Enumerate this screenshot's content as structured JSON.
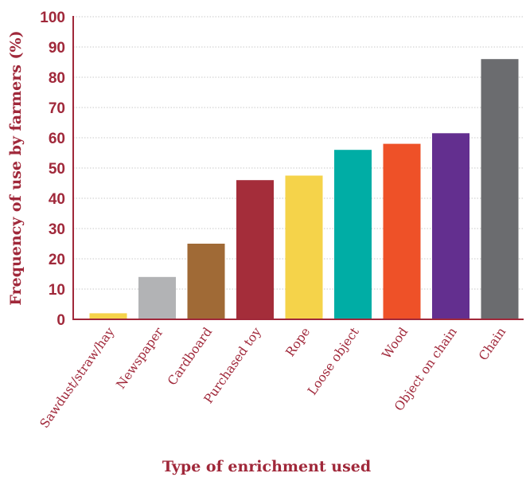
{
  "chart_data": {
    "type": "bar",
    "title": "",
    "xlabel": "Type of enrichment used",
    "ylabel": "Frequency of use by farmers (%)",
    "ylim": [
      0,
      100
    ],
    "yticks": [
      0,
      10,
      20,
      30,
      40,
      50,
      60,
      70,
      80,
      90,
      100
    ],
    "grid": true,
    "categories": [
      "Sawdust/straw/hay",
      "Newspaper",
      "Cardboard",
      "Purchased toy",
      "Rope",
      "Loose object",
      "Wood",
      "Object on chain",
      "Chain"
    ],
    "values": [
      2,
      14,
      25,
      46,
      47.5,
      56,
      58,
      61.5,
      86
    ],
    "colors": [
      "#f5d34a",
      "#b2b3b5",
      "#a06a36",
      "#a42d3a",
      "#f5d34a",
      "#00ada5",
      "#ee5128",
      "#632f8f",
      "#6b6c6f"
    ],
    "axis_color": "#a0283a"
  }
}
